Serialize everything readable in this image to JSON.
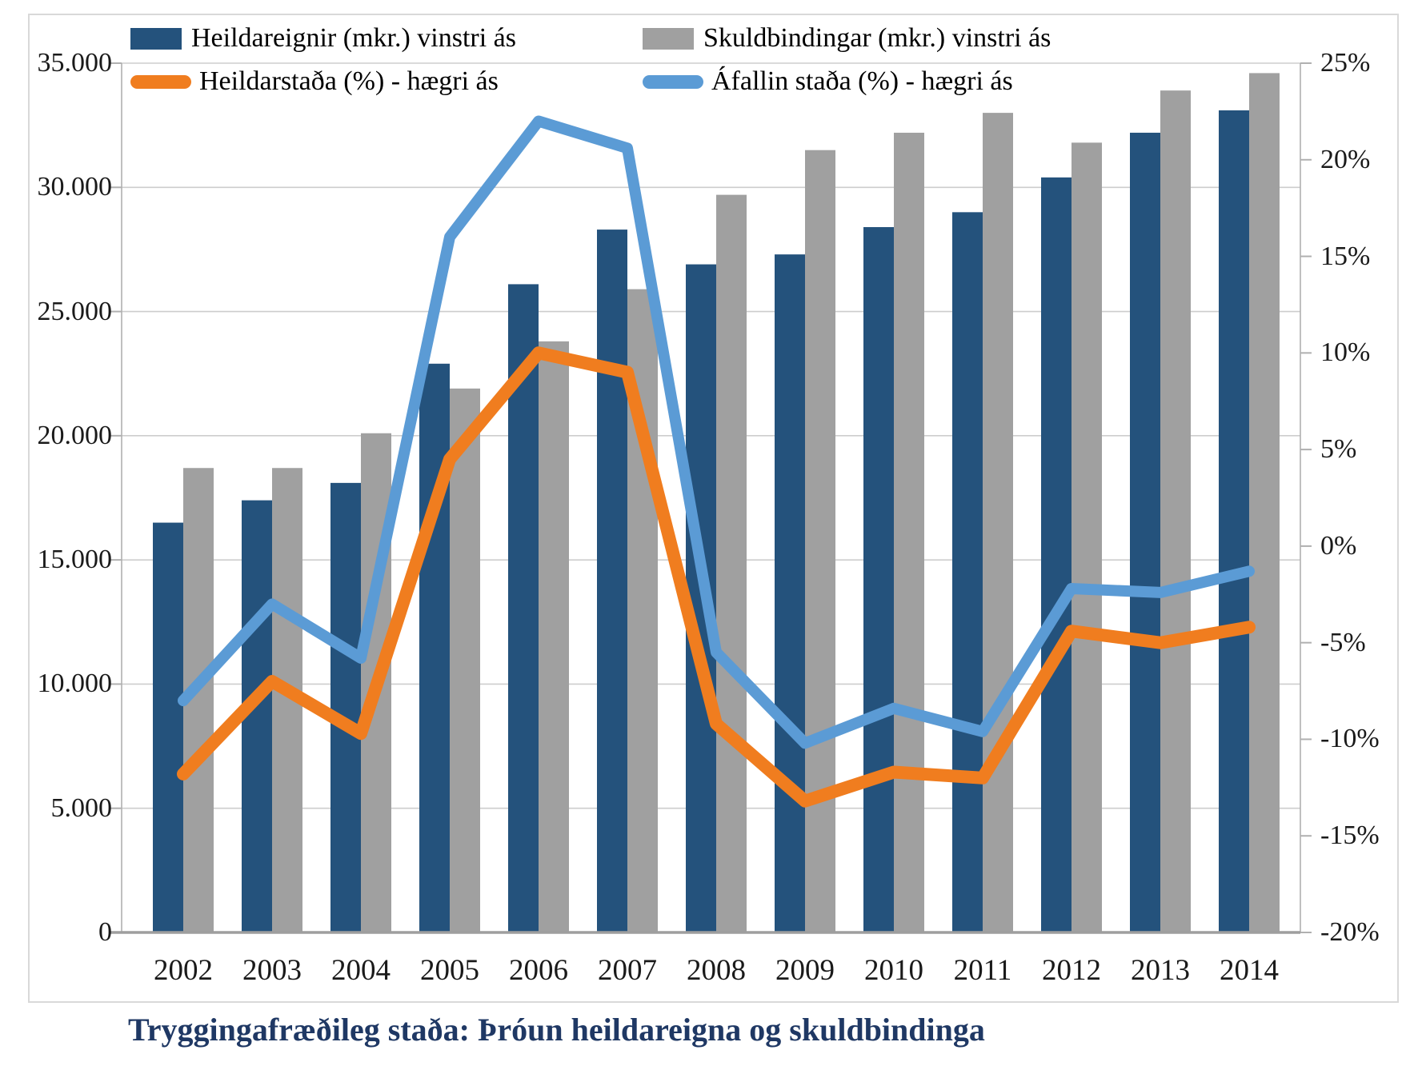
{
  "title": "Tryggingafræðileg staða: Þróun heildareigna og skuldbindinga",
  "colors": {
    "assets_bar": "#24527c",
    "liabilities_bar": "#a0a0a0",
    "total_line": "#f07d1f",
    "accrued_line": "#5b9bd5",
    "title_text": "#1f3864",
    "axis_text": "#1a1a1a",
    "gridline": "#cdcdcd",
    "axis_line": "#b0b0b0",
    "x_axis_line": "#9e9e9e",
    "frame": "#d9d9d9"
  },
  "legend": {
    "items": [
      {
        "label": "Heildareignir (mkr.) vinstri ás",
        "swatch": "bar",
        "color_key": "assets_bar"
      },
      {
        "label": "Skuldbindingar (mkr.) vinstri ás",
        "swatch": "bar",
        "color_key": "liabilities_bar"
      },
      {
        "label": "Heildarstaða (%) - hægri ás",
        "swatch": "line",
        "color_key": "total_line"
      },
      {
        "label": "Áfallin staða (%) - hægri ás",
        "swatch": "line",
        "color_key": "accrued_line"
      }
    ]
  },
  "chart_data": {
    "type": "combo-bar-line",
    "title": "Tryggingafræðileg staða: Þróun heildareigna og skuldbindinga",
    "categories": [
      2002,
      2003,
      2004,
      2005,
      2006,
      2007,
      2008,
      2009,
      2010,
      2011,
      2012,
      2013,
      2014
    ],
    "series": [
      {
        "name": "Heildareignir (mkr.) vinstri ás",
        "type": "bar",
        "axis": "left",
        "color_key": "assets_bar",
        "values": [
          16500,
          17400,
          18100,
          22900,
          26100,
          28300,
          26900,
          27300,
          28400,
          29000,
          30400,
          32200,
          33100
        ]
      },
      {
        "name": "Skuldbindingar (mkr.) vinstri ás",
        "type": "bar",
        "axis": "left",
        "color_key": "liabilities_bar",
        "values": [
          18700,
          18700,
          20100,
          21900,
          23800,
          25900,
          29700,
          31500,
          32200,
          33000,
          31800,
          33900,
          34600
        ]
      },
      {
        "name": "Heildarstaða (%) - hægri ás",
        "type": "line",
        "axis": "right",
        "color_key": "total_line",
        "values": [
          -11.8,
          -7.0,
          -9.7,
          4.5,
          10.0,
          9.0,
          -9.2,
          -13.2,
          -11.7,
          -12.0,
          -4.4,
          -5.0,
          -4.2
        ]
      },
      {
        "name": "Áfallin staða (%) - hægri ás",
        "type": "line",
        "axis": "right",
        "color_key": "accrued_line",
        "values": [
          -8.0,
          -3.0,
          -5.8,
          16.0,
          22.0,
          20.6,
          -5.5,
          -10.2,
          -8.4,
          -9.6,
          -2.2,
          -2.4,
          -1.3
        ]
      }
    ],
    "left_axis": {
      "min": 0,
      "max": 35000,
      "step": 5000,
      "tick_labels": [
        "0",
        "5.000",
        "10.000",
        "15.000",
        "20.000",
        "25.000",
        "30.000",
        "35.000"
      ]
    },
    "right_axis": {
      "min": -20,
      "max": 25,
      "step": 5,
      "tick_labels": [
        "-20%",
        "-15%",
        "-10%",
        "-5%",
        "0%",
        "5%",
        "10%",
        "15%",
        "20%",
        "25%"
      ]
    },
    "grid": "horizontal",
    "legend_position": "top"
  }
}
